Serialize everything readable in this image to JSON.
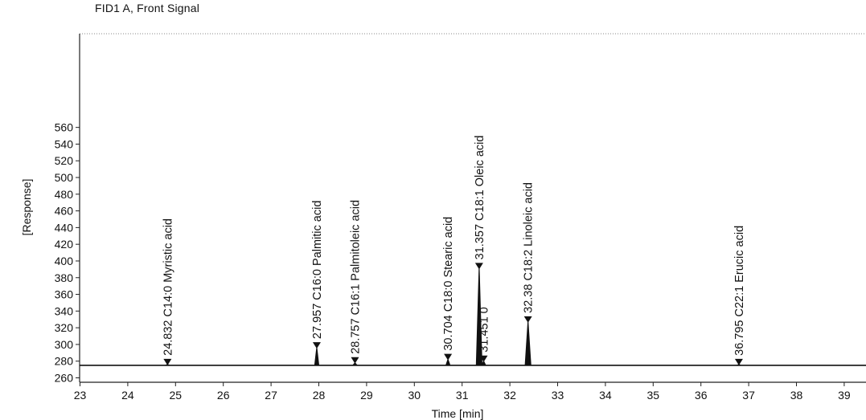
{
  "chart_data": {
    "type": "line",
    "title": "FID1 A, Front Signal",
    "xlabel": "Time [min]",
    "ylabel": "[Response]",
    "xlim": [
      23,
      39.3
    ],
    "ylim": [
      260,
      570
    ],
    "x_ticks": [
      23,
      24,
      25,
      26,
      27,
      28,
      29,
      30,
      31,
      32,
      33,
      34,
      35,
      36,
      37,
      38,
      39
    ],
    "y_ticks": [
      260,
      280,
      300,
      320,
      340,
      360,
      380,
      400,
      420,
      440,
      460,
      480,
      500,
      520,
      540,
      560
    ],
    "baseline": 275,
    "grid": false,
    "line_color": "#111111",
    "peaks": [
      {
        "time": 24.832,
        "height": 276,
        "label": "24.832 C14:0 Myristic acid"
      },
      {
        "time": 27.957,
        "height": 296,
        "label": "27.957 C16:0 Palmitic acid"
      },
      {
        "time": 28.757,
        "height": 278,
        "label": "28.757 C16:1 Palmitoleic acid"
      },
      {
        "time": 30.704,
        "height": 282,
        "label": "30.704 C18:0 Stearic acid"
      },
      {
        "time": 31.357,
        "height": 391,
        "label": "31.357 C18:1 Oleic acid"
      },
      {
        "time": 31.451,
        "height": 280,
        "label": "31.451 0"
      },
      {
        "time": 32.38,
        "height": 327,
        "label": "32.38 C18:2 Linoleic acid"
      },
      {
        "time": 36.795,
        "height": 276,
        "label": "36.795 C22:1 Erucic acid"
      }
    ]
  }
}
